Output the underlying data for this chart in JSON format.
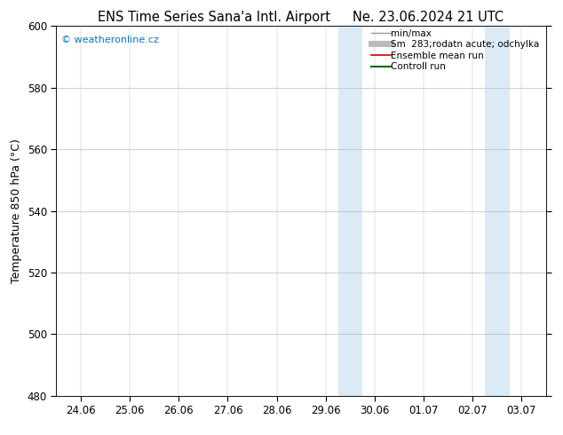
{
  "title_left": "ENS Time Series Sana'a Intl. Airport",
  "title_right": "Ne. 23.06.2024 21 UTC",
  "ylabel": "Temperature 850 hPa (°C)",
  "ylim": [
    480,
    600
  ],
  "yticks": [
    480,
    500,
    520,
    540,
    560,
    580,
    600
  ],
  "xtick_labels": [
    "24.06",
    "25.06",
    "26.06",
    "27.06",
    "28.06",
    "29.06",
    "30.06",
    "01.07",
    "02.07",
    "03.07"
  ],
  "shade_bands": [
    {
      "xmin": 5.25,
      "xmax": 5.5,
      "color": "#daeaf6"
    },
    {
      "xmin": 5.5,
      "xmax": 5.75,
      "color": "#daeaf6"
    },
    {
      "xmin": 8.25,
      "xmax": 8.5,
      "color": "#daeaf6"
    },
    {
      "xmin": 8.5,
      "xmax": 8.75,
      "color": "#daeaf6"
    }
  ],
  "watermark_text": "© weatheronline.cz",
  "watermark_color": "#0077cc",
  "legend_entries": [
    {
      "label": "min/max",
      "color": "#999999",
      "lw": 1.0,
      "ls": "-"
    },
    {
      "label": "Sm  283;rodatn acute; odchylka",
      "color": "#bbbbbb",
      "lw": 5,
      "ls": "-"
    },
    {
      "label": "Ensemble mean run",
      "color": "#cc0000",
      "lw": 1.2,
      "ls": "-"
    },
    {
      "label": "Controll run",
      "color": "#006600",
      "lw": 1.5,
      "ls": "-"
    }
  ],
  "grid_color": "#bbbbbb",
  "bg_color": "#ffffff",
  "title_fontsize": 10.5,
  "ylabel_fontsize": 9,
  "tick_fontsize": 8.5,
  "legend_fontsize": 7.5
}
